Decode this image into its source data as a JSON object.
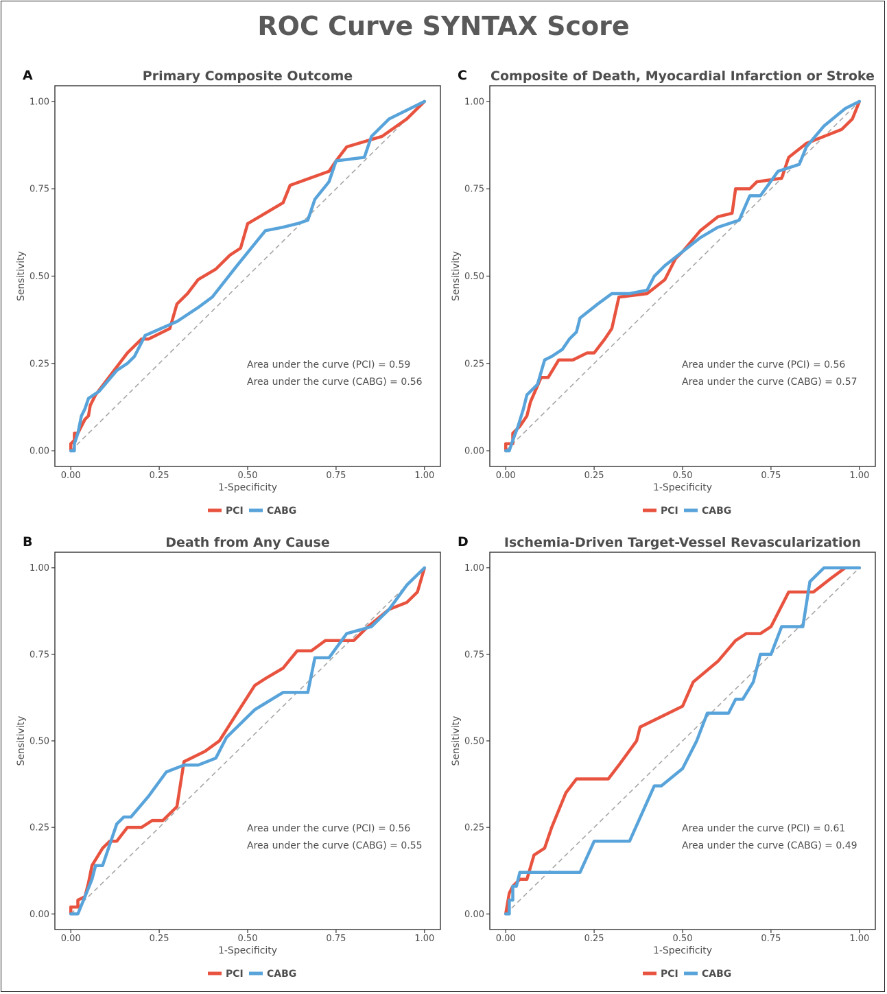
{
  "page": {
    "title": "ROC Curve SYNTAX Score"
  },
  "colors": {
    "pci": "#E8533F",
    "cabg": "#57A3DA",
    "diagonal": "#a6a6a6",
    "text": "#4d4d4d"
  },
  "chart_data": [
    {
      "type": "line",
      "panel_letter": "A",
      "title": "Primary Composite Outcome",
      "xlabel": "1-Specificity",
      "ylabel": "Sensitivity",
      "xlim": [
        0,
        1
      ],
      "ylim": [
        0,
        1
      ],
      "xticks": [
        "0.00",
        "0.25",
        "0.50",
        "0.75",
        "1.00"
      ],
      "yticks": [
        "0.00",
        "0.25",
        "0.50",
        "0.75",
        "1.00"
      ],
      "legend": {
        "position": "bottom",
        "entries": [
          "PCI",
          "CABG"
        ]
      },
      "annotations": [
        "Area under the curve (PCI) = 0.59",
        "Area under the curve (CABG) = 0.56"
      ],
      "series": [
        {
          "name": "PCI",
          "points": [
            [
              0,
              0
            ],
            [
              0,
              0.02
            ],
            [
              0.01,
              0.03
            ],
            [
              0.01,
              0.05
            ],
            [
              0.02,
              0.05
            ],
            [
              0.03,
              0.07
            ],
            [
              0.04,
              0.09
            ],
            [
              0.05,
              0.1
            ],
            [
              0.055,
              0.13
            ],
            [
              0.07,
              0.16
            ],
            [
              0.1,
              0.2
            ],
            [
              0.13,
              0.24
            ],
            [
              0.16,
              0.28
            ],
            [
              0.19,
              0.31
            ],
            [
              0.2,
              0.32
            ],
            [
              0.22,
              0.32
            ],
            [
              0.28,
              0.35
            ],
            [
              0.3,
              0.42
            ],
            [
              0.33,
              0.45
            ],
            [
              0.36,
              0.49
            ],
            [
              0.41,
              0.52
            ],
            [
              0.45,
              0.56
            ],
            [
              0.48,
              0.58
            ],
            [
              0.5,
              0.65
            ],
            [
              0.6,
              0.71
            ],
            [
              0.62,
              0.76
            ],
            [
              0.73,
              0.8
            ],
            [
              0.75,
              0.83
            ],
            [
              0.78,
              0.87
            ],
            [
              0.88,
              0.9
            ],
            [
              0.95,
              0.95
            ],
            [
              1,
              1
            ]
          ]
        },
        {
          "name": "CABG",
          "points": [
            [
              0,
              0
            ],
            [
              0.01,
              0
            ],
            [
              0.01,
              0.02
            ],
            [
              0.02,
              0.05
            ],
            [
              0.03,
              0.1
            ],
            [
              0.04,
              0.12
            ],
            [
              0.05,
              0.15
            ],
            [
              0.08,
              0.17
            ],
            [
              0.13,
              0.23
            ],
            [
              0.16,
              0.25
            ],
            [
              0.18,
              0.27
            ],
            [
              0.21,
              0.33
            ],
            [
              0.3,
              0.37
            ],
            [
              0.36,
              0.41
            ],
            [
              0.4,
              0.44
            ],
            [
              0.47,
              0.53
            ],
            [
              0.55,
              0.63
            ],
            [
              0.6,
              0.64
            ],
            [
              0.64,
              0.65
            ],
            [
              0.67,
              0.66
            ],
            [
              0.69,
              0.72
            ],
            [
              0.73,
              0.77
            ],
            [
              0.75,
              0.83
            ],
            [
              0.83,
              0.84
            ],
            [
              0.85,
              0.9
            ],
            [
              0.9,
              0.95
            ],
            [
              1,
              1
            ]
          ]
        }
      ]
    },
    {
      "type": "line",
      "panel_letter": "C",
      "title": "Composite of Death, Myocardial Infarction or Stroke",
      "xlabel": "1-Specificity",
      "ylabel": "Sensitivity",
      "xlim": [
        0,
        1
      ],
      "ylim": [
        0,
        1
      ],
      "xticks": [
        "0.00",
        "0.25",
        "0.50",
        "0.75",
        "1.00"
      ],
      "yticks": [
        "0.00",
        "0.25",
        "0.50",
        "0.75",
        "1.00"
      ],
      "legend": {
        "position": "bottom",
        "entries": [
          "PCI",
          "CABG"
        ]
      },
      "annotations": [
        "Area under the curve (PCI) = 0.56",
        "Area under the curve (CABG) = 0.57"
      ],
      "series": [
        {
          "name": "PCI",
          "points": [
            [
              0,
              0
            ],
            [
              0,
              0.02
            ],
            [
              0.02,
              0.02
            ],
            [
              0.02,
              0.05
            ],
            [
              0.04,
              0.07
            ],
            [
              0.06,
              0.1
            ],
            [
              0.07,
              0.14
            ],
            [
              0.1,
              0.21
            ],
            [
              0.12,
              0.21
            ],
            [
              0.15,
              0.26
            ],
            [
              0.19,
              0.26
            ],
            [
              0.23,
              0.28
            ],
            [
              0.25,
              0.28
            ],
            [
              0.28,
              0.32
            ],
            [
              0.3,
              0.35
            ],
            [
              0.32,
              0.44
            ],
            [
              0.4,
              0.45
            ],
            [
              0.45,
              0.49
            ],
            [
              0.48,
              0.55
            ],
            [
              0.5,
              0.57
            ],
            [
              0.55,
              0.63
            ],
            [
              0.6,
              0.67
            ],
            [
              0.64,
              0.68
            ],
            [
              0.65,
              0.75
            ],
            [
              0.69,
              0.75
            ],
            [
              0.71,
              0.77
            ],
            [
              0.78,
              0.78
            ],
            [
              0.8,
              0.84
            ],
            [
              0.85,
              0.88
            ],
            [
              0.9,
              0.9
            ],
            [
              0.95,
              0.92
            ],
            [
              0.98,
              0.95
            ],
            [
              1,
              1
            ]
          ]
        },
        {
          "name": "CABG",
          "points": [
            [
              0,
              0
            ],
            [
              0.01,
              0
            ],
            [
              0.02,
              0.03
            ],
            [
              0.035,
              0.07
            ],
            [
              0.05,
              0.12
            ],
            [
              0.06,
              0.16
            ],
            [
              0.09,
              0.19
            ],
            [
              0.11,
              0.26
            ],
            [
              0.13,
              0.27
            ],
            [
              0.16,
              0.29
            ],
            [
              0.18,
              0.32
            ],
            [
              0.2,
              0.34
            ],
            [
              0.21,
              0.38
            ],
            [
              0.26,
              0.42
            ],
            [
              0.3,
              0.45
            ],
            [
              0.35,
              0.45
            ],
            [
              0.4,
              0.46
            ],
            [
              0.42,
              0.5
            ],
            [
              0.45,
              0.53
            ],
            [
              0.5,
              0.57
            ],
            [
              0.55,
              0.61
            ],
            [
              0.6,
              0.64
            ],
            [
              0.63,
              0.65
            ],
            [
              0.66,
              0.66
            ],
            [
              0.69,
              0.73
            ],
            [
              0.72,
              0.73
            ],
            [
              0.77,
              0.8
            ],
            [
              0.83,
              0.82
            ],
            [
              0.85,
              0.87
            ],
            [
              0.9,
              0.93
            ],
            [
              0.96,
              0.98
            ],
            [
              1,
              1
            ]
          ]
        }
      ]
    },
    {
      "type": "line",
      "panel_letter": "B",
      "title": "Death from Any Cause",
      "xlabel": "1-Specificity",
      "ylabel": "Sensitivity",
      "xlim": [
        0,
        1
      ],
      "ylim": [
        0,
        1
      ],
      "xticks": [
        "0.00",
        "0.25",
        "0.50",
        "0.75",
        "1.00"
      ],
      "yticks": [
        "0.00",
        "0.25",
        "0.50",
        "0.75",
        "1.00"
      ],
      "legend": {
        "position": "bottom",
        "entries": [
          "PCI",
          "CABG"
        ]
      },
      "annotations": [
        "Area under the curve (PCI) = 0.56",
        "Area under the curve (CABG) = 0.55"
      ],
      "series": [
        {
          "name": "PCI",
          "points": [
            [
              0,
              0
            ],
            [
              0,
              0.02
            ],
            [
              0.02,
              0.02
            ],
            [
              0.02,
              0.04
            ],
            [
              0.04,
              0.05
            ],
            [
              0.05,
              0.09
            ],
            [
              0.06,
              0.14
            ],
            [
              0.09,
              0.19
            ],
            [
              0.11,
              0.21
            ],
            [
              0.13,
              0.21
            ],
            [
              0.16,
              0.25
            ],
            [
              0.2,
              0.25
            ],
            [
              0.23,
              0.27
            ],
            [
              0.26,
              0.27
            ],
            [
              0.3,
              0.31
            ],
            [
              0.32,
              0.44
            ],
            [
              0.38,
              0.47
            ],
            [
              0.42,
              0.5
            ],
            [
              0.47,
              0.58
            ],
            [
              0.52,
              0.66
            ],
            [
              0.55,
              0.68
            ],
            [
              0.6,
              0.71
            ],
            [
              0.64,
              0.76
            ],
            [
              0.68,
              0.76
            ],
            [
              0.72,
              0.79
            ],
            [
              0.8,
              0.79
            ],
            [
              0.84,
              0.83
            ],
            [
              0.9,
              0.88
            ],
            [
              0.95,
              0.9
            ],
            [
              0.98,
              0.93
            ],
            [
              1,
              1
            ]
          ]
        },
        {
          "name": "CABG",
          "points": [
            [
              0,
              0
            ],
            [
              0.02,
              0
            ],
            [
              0.04,
              0.05
            ],
            [
              0.06,
              0.1
            ],
            [
              0.07,
              0.14
            ],
            [
              0.09,
              0.14
            ],
            [
              0.13,
              0.26
            ],
            [
              0.15,
              0.28
            ],
            [
              0.17,
              0.28
            ],
            [
              0.22,
              0.34
            ],
            [
              0.27,
              0.41
            ],
            [
              0.32,
              0.43
            ],
            [
              0.36,
              0.43
            ],
            [
              0.41,
              0.45
            ],
            [
              0.44,
              0.51
            ],
            [
              0.52,
              0.59
            ],
            [
              0.6,
              0.64
            ],
            [
              0.67,
              0.64
            ],
            [
              0.69,
              0.74
            ],
            [
              0.73,
              0.74
            ],
            [
              0.78,
              0.81
            ],
            [
              0.85,
              0.83
            ],
            [
              0.9,
              0.88
            ],
            [
              0.95,
              0.95
            ],
            [
              1,
              1
            ]
          ]
        }
      ]
    },
    {
      "type": "line",
      "panel_letter": "D",
      "title": "Ischemia-Driven Target-Vessel Revascularization",
      "xlabel": "1-Specificity",
      "ylabel": "Sensitivity",
      "xlim": [
        0,
        1
      ],
      "ylim": [
        0,
        1
      ],
      "xticks": [
        "0.00",
        "0.25",
        "0.50",
        "0.75",
        "1.00"
      ],
      "yticks": [
        "0.00",
        "0.25",
        "0.50",
        "0.75",
        "1.00"
      ],
      "legend": {
        "position": "bottom",
        "entries": [
          "PCI",
          "CABG"
        ]
      },
      "annotations": [
        "Area under the curve (PCI) = 0.61",
        "Area under the curve (CABG) = 0.49"
      ],
      "series": [
        {
          "name": "PCI",
          "points": [
            [
              0,
              0
            ],
            [
              0.01,
              0.06
            ],
            [
              0.02,
              0.08
            ],
            [
              0.04,
              0.1
            ],
            [
              0.06,
              0.1
            ],
            [
              0.08,
              0.17
            ],
            [
              0.11,
              0.19
            ],
            [
              0.13,
              0.25
            ],
            [
              0.17,
              0.35
            ],
            [
              0.2,
              0.39
            ],
            [
              0.29,
              0.39
            ],
            [
              0.32,
              0.43
            ],
            [
              0.37,
              0.5
            ],
            [
              0.38,
              0.54
            ],
            [
              0.44,
              0.57
            ],
            [
              0.5,
              0.6
            ],
            [
              0.53,
              0.67
            ],
            [
              0.6,
              0.73
            ],
            [
              0.65,
              0.79
            ],
            [
              0.68,
              0.81
            ],
            [
              0.72,
              0.81
            ],
            [
              0.75,
              0.83
            ],
            [
              0.8,
              0.93
            ],
            [
              0.87,
              0.93
            ],
            [
              0.92,
              0.97
            ],
            [
              0.96,
              1
            ],
            [
              1,
              1
            ]
          ]
        },
        {
          "name": "CABG",
          "points": [
            [
              0,
              0
            ],
            [
              0.01,
              0
            ],
            [
              0.01,
              0.04
            ],
            [
              0.02,
              0.04
            ],
            [
              0.02,
              0.08
            ],
            [
              0.03,
              0.08
            ],
            [
              0.04,
              0.12
            ],
            [
              0.21,
              0.12
            ],
            [
              0.25,
              0.21
            ],
            [
              0.35,
              0.21
            ],
            [
              0.42,
              0.37
            ],
            [
              0.44,
              0.37
            ],
            [
              0.5,
              0.42
            ],
            [
              0.54,
              0.5
            ],
            [
              0.57,
              0.58
            ],
            [
              0.63,
              0.58
            ],
            [
              0.65,
              0.62
            ],
            [
              0.67,
              0.62
            ],
            [
              0.7,
              0.67
            ],
            [
              0.72,
              0.75
            ],
            [
              0.75,
              0.75
            ],
            [
              0.78,
              0.83
            ],
            [
              0.84,
              0.83
            ],
            [
              0.86,
              0.96
            ],
            [
              0.9,
              1
            ],
            [
              1,
              1
            ]
          ]
        }
      ]
    }
  ]
}
